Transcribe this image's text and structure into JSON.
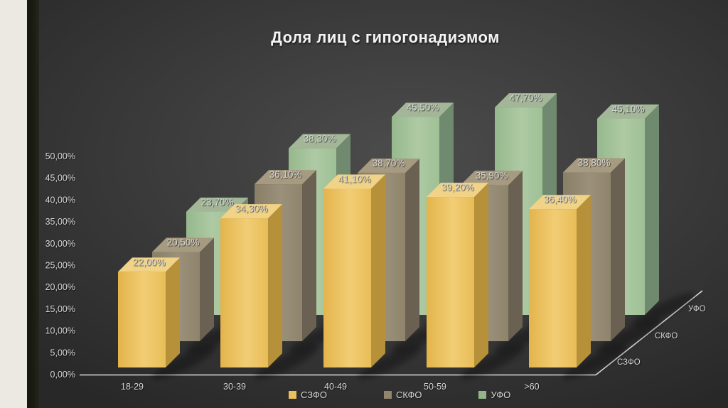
{
  "slide": {
    "title": "Доля лиц с гипогонадиэмом"
  },
  "chart_data": {
    "type": "bar",
    "subtype": "3d-column",
    "title": "Доля лиц с гипогонадиэмом",
    "categories": [
      "18-29",
      "30-39",
      "40-49",
      "50-59",
      ">60"
    ],
    "series": [
      {
        "name": "СЗФО",
        "values": [
          22.0,
          34.3,
          41.1,
          39.2,
          36.4
        ],
        "labels": [
          "22,00%",
          "34,30%",
          "41,10%",
          "39,20%",
          "36,40%"
        ],
        "color_front": [
          "#e3b44c",
          "#f2cd74",
          "#e8bd58"
        ],
        "color_top": "#f0d387",
        "color_side": "#b6913a",
        "legend_color": "#e9c05c"
      },
      {
        "name": "СКФО",
        "values": [
          20.5,
          36.1,
          38.7,
          35.9,
          38.8
        ],
        "labels": [
          "20,50%",
          "36,10%",
          "38,70%",
          "35,90%",
          "38,80%"
        ],
        "color_front": [
          "#897e66",
          "#9b907a",
          "#8f846c"
        ],
        "color_top": "#a69a81",
        "color_side": "#6b6152",
        "legend_color": "#91856c"
      },
      {
        "name": "УФО",
        "values": [
          23.7,
          38.3,
          45.5,
          47.7,
          45.1
        ],
        "labels": [
          "23,70%",
          "38,30%",
          "45,50%",
          "47,70%",
          "45,10%"
        ],
        "color_front": [
          "#96b88d",
          "#aecaa4",
          "#9fc096"
        ],
        "color_top": "#a3b798",
        "color_side": "#6f8a6e",
        "legend_color": "#94b58a"
      }
    ],
    "y_ticks": [
      "0,00%",
      "5,00%",
      "10,00%",
      "15,00%",
      "20,00%",
      "25,00%",
      "30,00%",
      "35,00%",
      "40,00%",
      "45,00%",
      "50,00%"
    ],
    "ylim": [
      0,
      50
    ],
    "y_tick_step": 5,
    "depth_axis_labels": [
      "СЗФО",
      "СКФО",
      "УФО"
    ],
    "legend_position": "bottom",
    "grid": false,
    "axis_color": "#dcdcdc"
  }
}
